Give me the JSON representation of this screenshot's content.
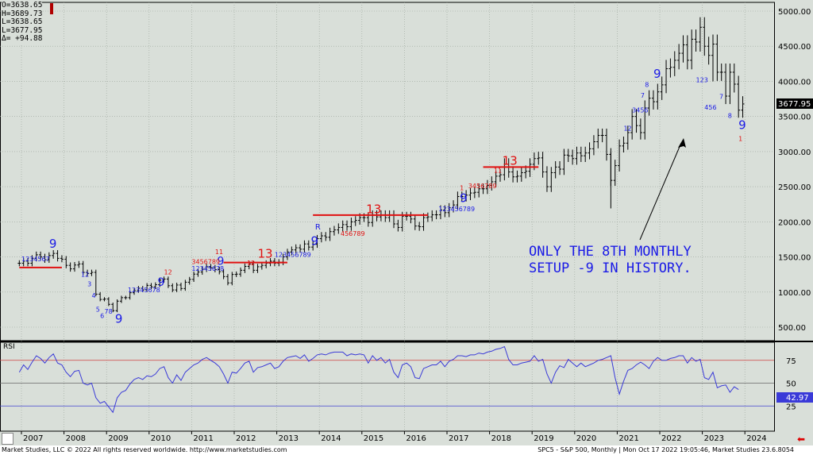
{
  "ohlc_box": {
    "o": "O=3638.65",
    "h": "H=3689.73",
    "l": "L=3638.65",
    "c": "L=3677.95",
    "d": "Δ= +94.88"
  },
  "price_tag": "3677.95",
  "rsi_tag": "42.97",
  "rsi_label": "RSI",
  "annotation": {
    "line1": "ONLY THE 8TH MONTHLY",
    "line2": "SETUP -9 IN HISTORY."
  },
  "footer": {
    "left": "Market Studies, LLC © 2022 All rights reserved worldwide. http://www.marketstudies.com",
    "right": "SPC5 - S&P 500, Monthly | Mon Oct 17 2022 19:05:46, Market Studies 23.6.8054"
  },
  "colors": {
    "bg": "#d9dfd9",
    "price": "#000000",
    "rsi": "#3a3ad8",
    "red": "#e01010",
    "blue": "#1a1ae6",
    "ref75": "#d04040",
    "ref25": "#4040d0"
  },
  "chart_data": [
    {
      "type": "line",
      "title": "",
      "x_ticks": [
        "2007",
        "2008",
        "2009",
        "2010",
        "2011",
        "2012",
        "2013",
        "2014",
        "2015",
        "2016",
        "2017",
        "2018",
        "2019",
        "2020",
        "2021",
        "2022",
        "2023",
        "2024"
      ],
      "y_ticks": [
        "5000.00",
        "4500.00",
        "4000.00",
        "3500.00",
        "3000.00",
        "2500.00",
        "2000.00",
        "1500.00",
        "1000.00",
        "500.00"
      ],
      "ylim": [
        290,
        5310
      ],
      "series": [
        {
          "values": [
            [
              2006.95,
              1410
            ],
            [
              2007.05,
              1440
            ],
            [
              2007.15,
              1410
            ],
            [
              2007.25,
              1480
            ],
            [
              2007.35,
              1530
            ],
            [
              2007.45,
              1500
            ],
            [
              2007.55,
              1460
            ],
            [
              2007.65,
              1520
            ],
            [
              2007.75,
              1550
            ],
            [
              2007.85,
              1480
            ],
            [
              2007.95,
              1468
            ],
            [
              2008.05,
              1380
            ],
            [
              2008.15,
              1330
            ],
            [
              2008.25,
              1385
            ],
            [
              2008.35,
              1400
            ],
            [
              2008.45,
              1280
            ],
            [
              2008.55,
              1265
            ],
            [
              2008.65,
              1280
            ],
            [
              2008.75,
              970
            ],
            [
              2008.85,
              895
            ],
            [
              2008.95,
              900
            ],
            [
              2009.05,
              825
            ],
            [
              2009.15,
              735
            ],
            [
              2009.25,
              870
            ],
            [
              2009.35,
              920
            ],
            [
              2009.45,
              920
            ],
            [
              2009.55,
              990
            ],
            [
              2009.65,
              1020
            ],
            [
              2009.75,
              1055
            ],
            [
              2009.85,
              1030
            ],
            [
              2009.95,
              1095
            ],
            [
              2010.05,
              1075
            ],
            [
              2010.15,
              1105
            ],
            [
              2010.25,
              1170
            ],
            [
              2010.35,
              1185
            ],
            [
              2010.45,
              1090
            ],
            [
              2010.55,
              1030
            ],
            [
              2010.65,
              1100
            ],
            [
              2010.75,
              1050
            ],
            [
              2010.85,
              1140
            ],
            [
              2010.95,
              1180
            ],
            [
              2011.05,
              1255
            ],
            [
              2011.15,
              1285
            ],
            [
              2011.25,
              1325
            ],
            [
              2011.35,
              1360
            ],
            [
              2011.45,
              1345
            ],
            [
              2011.55,
              1320
            ],
            [
              2011.65,
              1290
            ],
            [
              2011.75,
              1220
            ],
            [
              2011.85,
              1130
            ],
            [
              2011.95,
              1250
            ],
            [
              2012.05,
              1255
            ],
            [
              2012.15,
              1310
            ],
            [
              2012.25,
              1365
            ],
            [
              2012.35,
              1400
            ],
            [
              2012.45,
              1310
            ],
            [
              2012.55,
              1360
            ],
            [
              2012.65,
              1380
            ],
            [
              2012.75,
              1410
            ],
            [
              2012.85,
              1440
            ],
            [
              2012.95,
              1410
            ],
            [
              2013.05,
              1425
            ],
            [
              2013.15,
              1500
            ],
            [
              2013.25,
              1570
            ],
            [
              2013.35,
              1600
            ],
            [
              2013.45,
              1630
            ],
            [
              2013.55,
              1610
            ],
            [
              2013.65,
              1685
            ],
            [
              2013.75,
              1640
            ],
            [
              2013.85,
              1680
            ],
            [
              2013.95,
              1760
            ],
            [
              2014.05,
              1800
            ],
            [
              2014.15,
              1780
            ],
            [
              2014.25,
              1860
            ],
            [
              2014.35,
              1885
            ],
            [
              2014.45,
              1920
            ],
            [
              2014.55,
              1960
            ],
            [
              2014.65,
              1930
            ],
            [
              2014.75,
              2000
            ],
            [
              2014.85,
              2020
            ],
            [
              2014.95,
              2060
            ],
            [
              2015.05,
              2060
            ],
            [
              2015.15,
              1990
            ],
            [
              2015.25,
              2100
            ],
            [
              2015.35,
              2070
            ],
            [
              2015.45,
              2100
            ],
            [
              2015.55,
              2060
            ],
            [
              2015.65,
              2100
            ],
            [
              2015.75,
              1970
            ],
            [
              2015.85,
              1920
            ],
            [
              2015.95,
              2080
            ],
            [
              2016.05,
              2080
            ],
            [
              2016.15,
              2040
            ],
            [
              2016.25,
              1940
            ],
            [
              2016.35,
              1930
            ],
            [
              2016.45,
              2060
            ],
            [
              2016.55,
              2070
            ],
            [
              2016.65,
              2100
            ],
            [
              2016.75,
              2100
            ],
            [
              2016.85,
              2170
            ],
            [
              2016.95,
              2130
            ],
            [
              2017.05,
              2200
            ],
            [
              2017.15,
              2240
            ],
            [
              2017.25,
              2360
            ],
            [
              2017.35,
              2360
            ],
            [
              2017.45,
              2380
            ],
            [
              2017.55,
              2410
            ],
            [
              2017.65,
              2420
            ],
            [
              2017.75,
              2470
            ],
            [
              2017.85,
              2470
            ],
            [
              2017.95,
              2520
            ],
            [
              2018.05,
              2570
            ],
            [
              2018.15,
              2650
            ],
            [
              2018.25,
              2670
            ],
            [
              2018.35,
              2820
            ],
            [
              2018.45,
              2710
            ],
            [
              2018.55,
              2640
            ],
            [
              2018.65,
              2650
            ],
            [
              2018.75,
              2700
            ],
            [
              2018.85,
              2720
            ],
            [
              2018.95,
              2820
            ],
            [
              2019.05,
              2900
            ],
            [
              2019.15,
              2910
            ],
            [
              2019.25,
              2710
            ],
            [
              2019.35,
              2500
            ],
            [
              2019.45,
              2700
            ],
            [
              2019.55,
              2780
            ],
            [
              2019.65,
              2750
            ],
            [
              2019.75,
              2950
            ],
            [
              2019.85,
              2940
            ],
            [
              2019.95,
              2900
            ],
            [
              2020.05,
              2980
            ],
            [
              2020.15,
              2940
            ],
            [
              2020.25,
              2980
            ],
            [
              2020.35,
              3040
            ],
            [
              2020.45,
              3140
            ],
            [
              2020.55,
              3230
            ],
            [
              2020.65,
              3230
            ],
            [
              2020.75,
              2960
            ],
            [
              2020.85,
              2590
            ],
            [
              2020.95,
              2800
            ],
            [
              2021.05,
              3080
            ],
            [
              2021.15,
              3120
            ],
            [
              2021.25,
              3270
            ],
            [
              2021.35,
              3500
            ],
            [
              2021.45,
              3370
            ],
            [
              2021.55,
              3270
            ],
            [
              2021.65,
              3620
            ],
            [
              2021.75,
              3760
            ],
            [
              2021.85,
              3710
            ],
            [
              2021.95,
              3850
            ],
            [
              2022.05,
              3950
            ],
            [
              2022.15,
              4180
            ],
            [
              2022.25,
              4200
            ],
            [
              2022.35,
              4300
            ],
            [
              2022.45,
              4400
            ],
            [
              2022.55,
              4520
            ],
            [
              2022.65,
              4300
            ],
            [
              2022.75,
              4600
            ],
            [
              2022.85,
              4560
            ],
            [
              2022.95,
              4770
            ],
            [
              2023.05,
              4500
            ],
            [
              2023.15,
              4370
            ],
            [
              2023.25,
              4530
            ],
            [
              2023.35,
              4130
            ],
            [
              2023.45,
              4130
            ],
            [
              2023.55,
              3790
            ],
            [
              2023.65,
              4130
            ],
            [
              2023.75,
              3960
            ],
            [
              2023.85,
              3590
            ],
            [
              2023.95,
              3678
            ]
          ]
        }
      ],
      "note": "x values are calendar position in fractional years relative to the plotted month bars"
    },
    {
      "type": "line",
      "title": "RSI",
      "y_ticks": [
        "75",
        "50",
        "25"
      ],
      "ylim": [
        0,
        100
      ],
      "reference_lines": [
        75,
        50,
        25
      ],
      "series": [
        {
          "values": [
            62,
            70,
            65,
            73,
            80,
            77,
            72,
            78,
            82,
            72,
            70,
            62,
            57,
            63,
            64,
            50,
            48,
            50,
            34,
            28,
            30,
            24,
            18,
            34,
            40,
            42,
            49,
            54,
            56,
            54,
            58,
            57,
            60,
            66,
            68,
            56,
            50,
            59,
            53,
            62,
            66,
            70,
            72,
            76,
            78,
            75,
            72,
            68,
            60,
            50,
            62,
            61,
            66,
            72,
            74,
            62,
            67,
            68,
            70,
            72,
            66,
            68,
            74,
            78,
            79,
            80,
            77,
            81,
            74,
            77,
            81,
            82,
            81,
            83,
            84,
            84,
            84,
            80,
            82,
            81,
            82,
            81,
            72,
            80,
            75,
            78,
            72,
            76,
            62,
            56,
            70,
            72,
            68,
            56,
            55,
            66,
            68,
            70,
            70,
            74,
            68,
            74,
            76,
            80,
            80,
            79,
            81,
            81,
            83,
            82,
            84,
            85,
            87,
            88,
            90,
            76,
            70,
            70,
            72,
            73,
            74,
            80,
            74,
            76,
            60,
            50,
            62,
            69,
            67,
            76,
            72,
            68,
            72,
            68,
            70,
            72,
            75,
            76,
            78,
            80,
            56,
            38,
            52,
            64,
            66,
            70,
            73,
            70,
            66,
            74,
            78,
            75,
            75,
            77,
            78,
            80,
            80,
            72,
            78,
            74,
            76,
            56,
            54,
            62,
            45,
            47,
            48,
            40,
            46,
            43
          ]
        }
      ]
    }
  ]
}
